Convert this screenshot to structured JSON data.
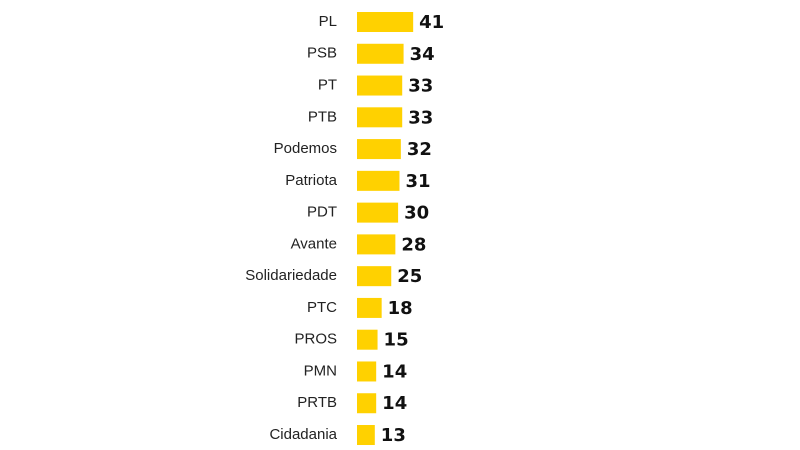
{
  "chart_data": {
    "type": "bar",
    "orientation": "horizontal",
    "color": "#ffd100",
    "categories": [
      "PL",
      "PSB",
      "PT",
      "PTB",
      "Podemos",
      "Patriota",
      "PDT",
      "Avante",
      "Solidariedade",
      "PTC",
      "PROS",
      "PMN",
      "PRTB",
      "Cidadania"
    ],
    "values": [
      41,
      34,
      33,
      33,
      32,
      31,
      30,
      28,
      25,
      18,
      15,
      14,
      14,
      13
    ]
  }
}
